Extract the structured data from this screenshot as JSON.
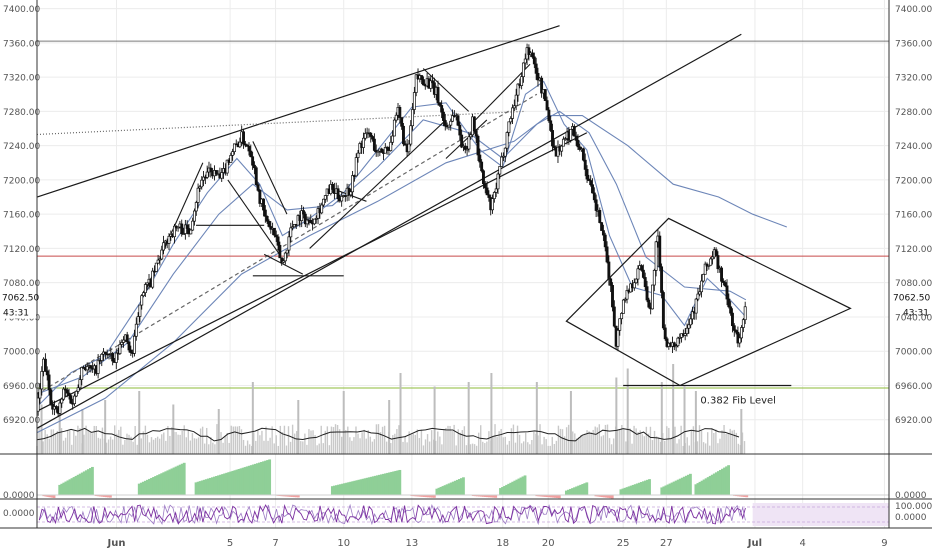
{
  "chart_data": {
    "type": "candlestick",
    "title": "",
    "price_axis": {
      "ylim": [
        6880,
        7410
      ],
      "ticks": [
        6920,
        6960,
        7000,
        7040,
        7080,
        7120,
        7160,
        7200,
        7240,
        7280,
        7320,
        7360,
        7400
      ],
      "tick_labels": [
        "6920.00",
        "6960.00",
        "7000.00",
        "7040.00",
        "7080.00",
        "7120.00",
        "7160.00",
        "7200.00",
        "7240.00",
        "7280.00",
        "7320.00",
        "7360.00",
        "7400.00"
      ]
    },
    "last_price": {
      "value": 7062.5,
      "label": "7062.50",
      "countdown": "43:31"
    },
    "x_axis": {
      "range_days": [
        0,
        37.5
      ],
      "date_ticks": [
        {
          "day": 3.5,
          "label": "Jun",
          "bold": true
        },
        {
          "day": 8.5,
          "label": "5"
        },
        {
          "day": 10.5,
          "label": "7"
        },
        {
          "day": 13.5,
          "label": "10"
        },
        {
          "day": 16.5,
          "label": "13"
        },
        {
          "day": 20.5,
          "label": "18"
        },
        {
          "day": 22.5,
          "label": "20"
        },
        {
          "day": 25.8,
          "label": "25"
        },
        {
          "day": 27.7,
          "label": "27"
        },
        {
          "day": 31.6,
          "label": "Jul",
          "bold": true
        },
        {
          "day": 33.7,
          "label": "4"
        },
        {
          "day": 37.3,
          "label": "9"
        }
      ]
    },
    "price_path": [
      [
        0.0,
        6930
      ],
      [
        0.3,
        6990
      ],
      [
        0.6,
        6945
      ],
      [
        0.9,
        6925
      ],
      [
        1.2,
        6955
      ],
      [
        1.6,
        6940
      ],
      [
        2.0,
        6985
      ],
      [
        2.5,
        6975
      ],
      [
        3.0,
        7000
      ],
      [
        3.4,
        6985
      ],
      [
        3.8,
        7020
      ],
      [
        4.2,
        6995
      ],
      [
        4.6,
        7070
      ],
      [
        5.0,
        7080
      ],
      [
        5.4,
        7110
      ],
      [
        5.8,
        7135
      ],
      [
        6.2,
        7145
      ],
      [
        6.7,
        7140
      ],
      [
        7.2,
        7200
      ],
      [
        7.7,
        7210
      ],
      [
        8.1,
        7200
      ],
      [
        8.5,
        7230
      ],
      [
        9.0,
        7250
      ],
      [
        9.4,
        7235
      ],
      [
        9.8,
        7180
      ],
      [
        10.1,
        7150
      ],
      [
        10.4,
        7140
      ],
      [
        10.8,
        7100
      ],
      [
        11.2,
        7145
      ],
      [
        11.6,
        7160
      ],
      [
        12.0,
        7150
      ],
      [
        12.5,
        7170
      ],
      [
        12.9,
        7190
      ],
      [
        13.3,
        7180
      ],
      [
        13.8,
        7190
      ],
      [
        14.2,
        7240
      ],
      [
        14.6,
        7255
      ],
      [
        15.0,
        7230
      ],
      [
        15.5,
        7240
      ],
      [
        15.9,
        7280
      ],
      [
        16.3,
        7225
      ],
      [
        16.7,
        7320
      ],
      [
        17.2,
        7315
      ],
      [
        17.6,
        7300
      ],
      [
        18.0,
        7260
      ],
      [
        18.4,
        7280
      ],
      [
        18.8,
        7230
      ],
      [
        19.2,
        7270
      ],
      [
        19.6,
        7200
      ],
      [
        20.0,
        7165
      ],
      [
        20.4,
        7215
      ],
      [
        20.8,
        7270
      ],
      [
        21.2,
        7310
      ],
      [
        21.6,
        7355
      ],
      [
        22.0,
        7325
      ],
      [
        22.4,
        7290
      ],
      [
        22.8,
        7230
      ],
      [
        23.2,
        7245
      ],
      [
        23.6,
        7260
      ],
      [
        24.0,
        7230
      ],
      [
        24.4,
        7185
      ],
      [
        24.8,
        7150
      ],
      [
        25.2,
        7085
      ],
      [
        25.5,
        7010
      ],
      [
        25.8,
        7060
      ],
      [
        26.2,
        7080
      ],
      [
        26.6,
        7100
      ],
      [
        27.0,
        7045
      ],
      [
        27.3,
        7140
      ],
      [
        27.6,
        7020
      ],
      [
        27.9,
        7000
      ],
      [
        28.2,
        7015
      ],
      [
        28.6,
        7030
      ],
      [
        29.0,
        7055
      ],
      [
        29.4,
        7095
      ],
      [
        29.8,
        7115
      ],
      [
        30.2,
        7080
      ],
      [
        30.6,
        7035
      ],
      [
        30.9,
        7005
      ],
      [
        31.2,
        7062.5
      ]
    ],
    "moving_averages": [
      {
        "points": [
          [
            0.0,
            6935
          ],
          [
            1.5,
            6975
          ],
          [
            3.0,
            6995
          ],
          [
            4.5,
            7055
          ],
          [
            6.0,
            7125
          ],
          [
            7.5,
            7185
          ],
          [
            8.8,
            7225
          ],
          [
            9.8,
            7195
          ],
          [
            10.8,
            7135
          ],
          [
            12.0,
            7155
          ],
          [
            13.5,
            7185
          ],
          [
            15.0,
            7235
          ],
          [
            16.5,
            7285
          ],
          [
            18.0,
            7290
          ],
          [
            19.5,
            7235
          ],
          [
            20.5,
            7215
          ],
          [
            21.5,
            7300
          ],
          [
            22.3,
            7315
          ],
          [
            23.2,
            7265
          ],
          [
            24.2,
            7235
          ],
          [
            25.2,
            7135
          ],
          [
            26.2,
            7075
          ],
          [
            27.5,
            7065
          ],
          [
            28.5,
            7030
          ],
          [
            29.5,
            7085
          ],
          [
            30.5,
            7060
          ],
          [
            31.2,
            7040
          ]
        ]
      },
      {
        "points": [
          [
            0.0,
            6950
          ],
          [
            2.0,
            6970
          ],
          [
            4.0,
            7010
          ],
          [
            6.0,
            7090
          ],
          [
            8.0,
            7160
          ],
          [
            9.5,
            7195
          ],
          [
            11.0,
            7165
          ],
          [
            13.0,
            7170
          ],
          [
            15.0,
            7215
          ],
          [
            17.0,
            7270
          ],
          [
            19.0,
            7255
          ],
          [
            20.5,
            7225
          ],
          [
            22.0,
            7265
          ],
          [
            23.0,
            7280
          ],
          [
            24.3,
            7255
          ],
          [
            25.5,
            7195
          ],
          [
            26.8,
            7110
          ],
          [
            28.5,
            7075
          ],
          [
            30.5,
            7070
          ],
          [
            31.2,
            7060
          ]
        ]
      },
      {
        "points": [
          [
            0.0,
            6905
          ],
          [
            3.0,
            6945
          ],
          [
            6.0,
            7010
          ],
          [
            9.0,
            7090
          ],
          [
            12.0,
            7135
          ],
          [
            15.0,
            7175
          ],
          [
            18.0,
            7220
          ],
          [
            21.0,
            7245
          ],
          [
            22.5,
            7275
          ],
          [
            24.0,
            7275
          ],
          [
            26.0,
            7240
          ],
          [
            28.0,
            7195
          ],
          [
            30.0,
            7180
          ],
          [
            31.5,
            7160
          ],
          [
            33.0,
            7145
          ]
        ]
      }
    ],
    "horizontal_lines": [
      {
        "value": 7362,
        "color": "#7a7a7a",
        "from_day": 0,
        "to_day": 37.5
      },
      {
        "value": 7111,
        "color": "#c84a4a",
        "from_day": 0,
        "to_day": 37.5
      },
      {
        "value": 6957,
        "color": "#8dbb3a",
        "from_day": 0,
        "to_day": 37.5
      }
    ],
    "trendlines": [
      {
        "from": [
          0.0,
          7180
        ],
        "to": [
          23.0,
          7380
        ]
      },
      {
        "from": [
          0.0,
          6910
        ],
        "to": [
          31.0,
          7370
        ]
      },
      {
        "from": [
          0.0,
          6930
        ],
        "to": [
          24.2,
          7255
        ]
      },
      {
        "from": [
          0.0,
          6950
        ],
        "to": [
          22.0,
          7300
        ],
        "dashed": true
      },
      {
        "from": [
          0.0,
          7253
        ],
        "to": [
          21.5,
          7280
        ],
        "dotted": true
      }
    ],
    "short_lines": [
      {
        "from": [
          4.6,
          7060
        ],
        "to": [
          7.3,
          7220
        ]
      },
      {
        "from": [
          8.4,
          7200
        ],
        "to": [
          10.7,
          7112
        ]
      },
      {
        "from": [
          9.5,
          7245
        ],
        "to": [
          11.0,
          7160
        ]
      },
      {
        "from": [
          7.0,
          7147
        ],
        "to": [
          10.0,
          7147
        ]
      },
      {
        "from": [
          10.0,
          7113
        ],
        "to": [
          11.7,
          7090
        ]
      },
      {
        "from": [
          9.5,
          7088
        ],
        "to": [
          13.5,
          7088
        ]
      },
      {
        "from": [
          12.0,
          7120
        ],
        "to": [
          18.0,
          7270
        ]
      },
      {
        "from": [
          13.0,
          7190
        ],
        "to": [
          14.5,
          7175
        ]
      },
      {
        "from": [
          17.0,
          7330
        ],
        "to": [
          19.0,
          7280
        ]
      },
      {
        "from": [
          18.0,
          7225
        ],
        "to": [
          19.8,
          7270
        ]
      },
      {
        "from": [
          19.3,
          7270
        ],
        "to": [
          21.7,
          7335
        ]
      }
    ],
    "diamond_pattern": {
      "points": [
        [
          23.3,
          7035
        ],
        [
          27.8,
          7155
        ],
        [
          35.8,
          7050
        ],
        [
          28.3,
          6960
        ]
      ]
    },
    "fib_annotation": {
      "label": "0.382 Fib Level",
      "value": 6960,
      "line_from_day": 25.8,
      "line_to_day": 33.2
    },
    "volume_panel": {
      "spikes": [
        [
          0.2,
          0.55
        ],
        [
          1.0,
          0.45
        ],
        [
          2.0,
          0.5
        ],
        [
          3.0,
          0.6
        ],
        [
          4.5,
          0.7
        ],
        [
          6.0,
          0.55
        ],
        [
          8.0,
          0.5
        ],
        [
          9.5,
          0.8
        ],
        [
          11.5,
          0.6
        ],
        [
          13.5,
          0.7
        ],
        [
          15.5,
          0.6
        ],
        [
          16.0,
          0.9
        ],
        [
          17.5,
          0.75
        ],
        [
          19.0,
          0.8
        ],
        [
          20.0,
          0.9
        ],
        [
          22.0,
          0.8
        ],
        [
          23.5,
          0.7
        ],
        [
          25.5,
          0.85
        ],
        [
          26.0,
          0.95
        ],
        [
          27.5,
          0.8
        ],
        [
          28.0,
          1.0
        ],
        [
          28.5,
          0.75
        ],
        [
          29.0,
          0.7
        ],
        [
          31.0,
          0.5
        ]
      ]
    },
    "histogram_panel": {
      "axis_label": "0.0000",
      "blocks": [
        {
          "from": 0.3,
          "to": 0.8,
          "sign": -1,
          "h": 0.4
        },
        {
          "from": 1.0,
          "to": 2.5,
          "sign": 1,
          "h": 0.8
        },
        {
          "from": 2.6,
          "to": 3.3,
          "sign": -1,
          "h": 0.35
        },
        {
          "from": 4.5,
          "to": 6.5,
          "sign": 1,
          "h": 0.9
        },
        {
          "from": 7.0,
          "to": 10.3,
          "sign": 1,
          "h": 1.0
        },
        {
          "from": 10.6,
          "to": 11.5,
          "sign": -1,
          "h": 0.3
        },
        {
          "from": 13.0,
          "to": 16.0,
          "sign": 1,
          "h": 0.7
        },
        {
          "from": 16.5,
          "to": 17.5,
          "sign": -1,
          "h": 0.35
        },
        {
          "from": 17.6,
          "to": 18.8,
          "sign": 1,
          "h": 0.5
        },
        {
          "from": 19.2,
          "to": 20.2,
          "sign": -1,
          "h": 0.35
        },
        {
          "from": 20.4,
          "to": 21.5,
          "sign": 1,
          "h": 0.55
        },
        {
          "from": 22.0,
          "to": 23.0,
          "sign": -1,
          "h": 0.4
        },
        {
          "from": 23.3,
          "to": 24.2,
          "sign": 1,
          "h": 0.35
        },
        {
          "from": 24.6,
          "to": 25.4,
          "sign": -1,
          "h": 0.45
        },
        {
          "from": 25.7,
          "to": 27.0,
          "sign": 1,
          "h": 0.45
        },
        {
          "from": 27.5,
          "to": 28.8,
          "sign": 1,
          "h": 0.6
        },
        {
          "from": 29.0,
          "to": 30.5,
          "sign": 1,
          "h": 0.85
        },
        {
          "from": 30.7,
          "to": 31.3,
          "sign": -1,
          "h": 0.3
        }
      ]
    },
    "oscillator_panel": {
      "left_label": "0.0000",
      "right_labels": [
        "100.0000",
        "0.0000"
      ]
    }
  }
}
